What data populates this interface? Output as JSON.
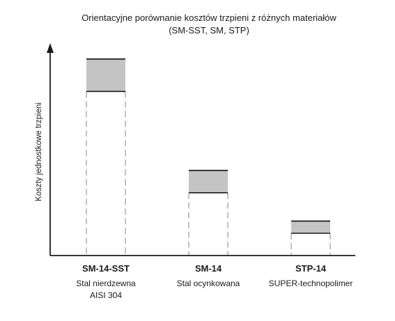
{
  "chart_data": {
    "type": "bar",
    "title": "Orientacyjne porównanie kosztów trzpieni z różnych materiałów",
    "subtitle": "(SM-SST, SM, STP)",
    "ylabel": "Koszty jednostkowe trzpieni",
    "xlabel": "",
    "y_ticks_shown": false,
    "ylim": [
      0,
      100
    ],
    "categories": [
      {
        "name": "SM-14-SST",
        "desc_lines": [
          "Stal nierdzewna",
          "AISI 304"
        ]
      },
      {
        "name": "SM-14",
        "desc_lines": [
          "Stal ocynkowana"
        ]
      },
      {
        "name": "STP-14",
        "desc_lines": [
          "SUPER-technopolimer"
        ]
      }
    ],
    "ranges": [
      {
        "low": 81,
        "high": 97
      },
      {
        "low": 31,
        "high": 42
      },
      {
        "low": 11,
        "high": 17
      }
    ],
    "colors": {
      "range_fill": "#c4c4c4",
      "range_edge": "#1a1a1a",
      "dashed_guide": "#9a9a9a",
      "axis": "#1a1a1a"
    }
  }
}
